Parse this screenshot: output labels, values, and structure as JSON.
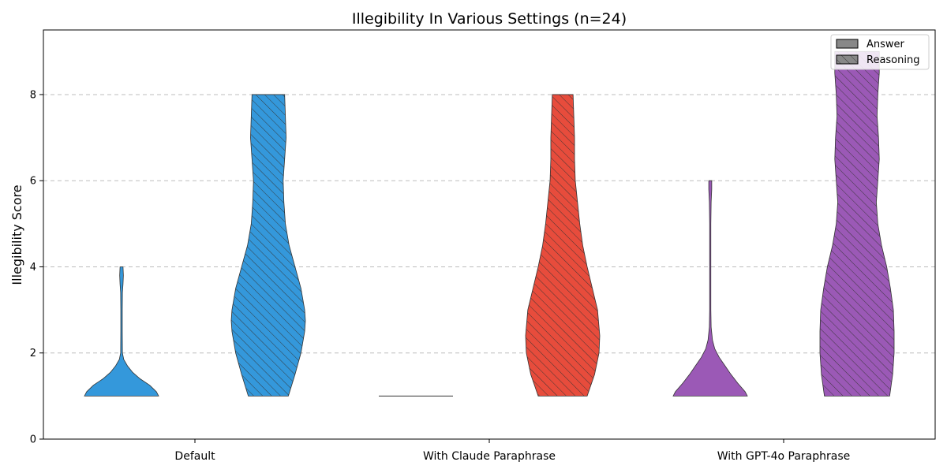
{
  "chart_data": {
    "type": "violin",
    "title": "Illegibility In Various Settings (n=24)",
    "xlabel": "",
    "ylabel": "Illegibility Score",
    "ylim": [
      0,
      9.5
    ],
    "yticks": [
      0,
      2,
      4,
      6,
      8
    ],
    "grid": "y-dashed",
    "legend": {
      "placement": "top-right",
      "entries": [
        {
          "label": "Answer",
          "hatch": false
        },
        {
          "label": "Reasoning",
          "hatch": true
        }
      ]
    },
    "categories": [
      "Default",
      "With Claude Paraphrase",
      "With GPT-4o Paraphrase"
    ],
    "colors": {
      "Default": "#3498db",
      "With Claude Paraphrase": "#e74c3c",
      "With GPT-4o Paraphrase": "#9b59b6"
    },
    "series": [
      {
        "category": "Default",
        "type": "Answer",
        "range": [
          1,
          4
        ],
        "density": [
          [
            1,
            0.5
          ],
          [
            1.1,
            0.47
          ],
          [
            1.25,
            0.38
          ],
          [
            1.4,
            0.25
          ],
          [
            1.55,
            0.15
          ],
          [
            1.7,
            0.08
          ],
          [
            1.85,
            0.03
          ],
          [
            2.0,
            0.012
          ],
          [
            2.5,
            0.01
          ],
          [
            3.0,
            0.01
          ],
          [
            3.4,
            0.012
          ],
          [
            3.6,
            0.02
          ],
          [
            3.8,
            0.025
          ],
          [
            4,
            0.02
          ]
        ]
      },
      {
        "category": "Default",
        "type": "Reasoning",
        "range": [
          1,
          8
        ],
        "density": [
          [
            1,
            0.27
          ],
          [
            1.5,
            0.36
          ],
          [
            2.0,
            0.44
          ],
          [
            2.5,
            0.49
          ],
          [
            2.75,
            0.5
          ],
          [
            3.0,
            0.49
          ],
          [
            3.5,
            0.44
          ],
          [
            4.0,
            0.36
          ],
          [
            4.5,
            0.28
          ],
          [
            5.0,
            0.23
          ],
          [
            5.5,
            0.21
          ],
          [
            6.0,
            0.2
          ],
          [
            6.5,
            0.22
          ],
          [
            7.0,
            0.24
          ],
          [
            7.5,
            0.23
          ],
          [
            8,
            0.22
          ]
        ]
      },
      {
        "category": "With Claude Paraphrase",
        "type": "Answer",
        "range": [
          1,
          1
        ],
        "density": []
      },
      {
        "category": "With Claude Paraphrase",
        "type": "Reasoning",
        "range": [
          1,
          8
        ],
        "density": [
          [
            1,
            0.33
          ],
          [
            1.5,
            0.43
          ],
          [
            2.0,
            0.49
          ],
          [
            2.4,
            0.5
          ],
          [
            3.0,
            0.47
          ],
          [
            3.5,
            0.4
          ],
          [
            4.0,
            0.33
          ],
          [
            4.5,
            0.27
          ],
          [
            5.0,
            0.23
          ],
          [
            5.5,
            0.2
          ],
          [
            6.0,
            0.17
          ],
          [
            6.5,
            0.16
          ],
          [
            7.0,
            0.16
          ],
          [
            7.5,
            0.15
          ],
          [
            8,
            0.14
          ]
        ]
      },
      {
        "category": "With GPT-4o Paraphrase",
        "type": "Answer",
        "range": [
          1,
          6
        ],
        "density": [
          [
            1,
            0.5
          ],
          [
            1.1,
            0.47
          ],
          [
            1.3,
            0.37
          ],
          [
            1.5,
            0.28
          ],
          [
            1.7,
            0.2
          ],
          [
            1.9,
            0.12
          ],
          [
            2.1,
            0.06
          ],
          [
            2.3,
            0.03
          ],
          [
            2.6,
            0.012
          ],
          [
            3.0,
            0.008
          ],
          [
            4.0,
            0.008
          ],
          [
            5.0,
            0.008
          ],
          [
            5.5,
            0.012
          ],
          [
            5.8,
            0.02
          ],
          [
            6,
            0.02
          ]
        ]
      },
      {
        "category": "With GPT-4o Paraphrase",
        "type": "Reasoning",
        "range": [
          1,
          9
        ],
        "density": [
          [
            1,
            0.44
          ],
          [
            1.5,
            0.48
          ],
          [
            2.0,
            0.5
          ],
          [
            2.5,
            0.5
          ],
          [
            3.0,
            0.49
          ],
          [
            3.5,
            0.45
          ],
          [
            4.0,
            0.4
          ],
          [
            4.5,
            0.33
          ],
          [
            5.0,
            0.28
          ],
          [
            5.5,
            0.26
          ],
          [
            6.0,
            0.28
          ],
          [
            6.5,
            0.3
          ],
          [
            7.0,
            0.29
          ],
          [
            7.5,
            0.27
          ],
          [
            8.0,
            0.28
          ],
          [
            8.5,
            0.3
          ],
          [
            9,
            0.3
          ]
        ]
      }
    ]
  }
}
